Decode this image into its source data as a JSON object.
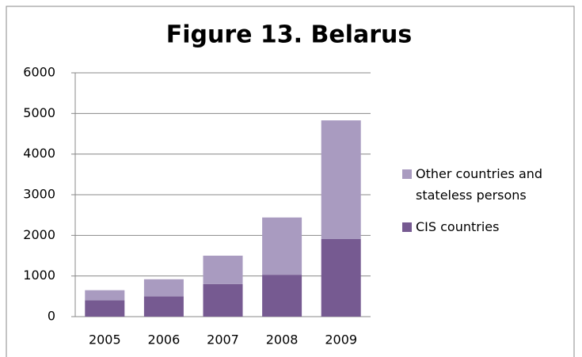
{
  "chart_data": {
    "type": "stacked-bar",
    "title": "Figure 13.  Belarus",
    "categories": [
      "2005",
      "2006",
      "2007",
      "2008",
      "2009"
    ],
    "series": [
      {
        "name": "CIS  countries",
        "color": "#765a91",
        "values": [
          400,
          500,
          800,
          1030,
          1910
        ]
      },
      {
        "name": "Other countries and stateless persons",
        "color": "#a99bc0",
        "values": [
          250,
          420,
          700,
          1410,
          2920
        ]
      }
    ],
    "ylim": [
      0,
      6000
    ],
    "yticks": [
      0,
      1000,
      2000,
      3000,
      4000,
      5000,
      6000
    ],
    "grid": true
  }
}
